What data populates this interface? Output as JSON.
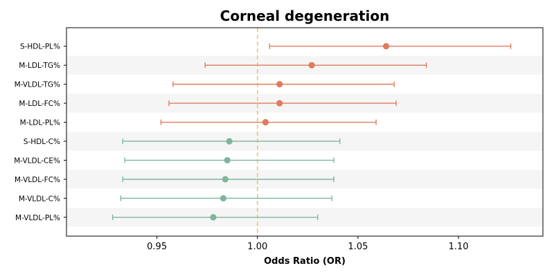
{
  "chart_data": {
    "type": "scatter",
    "title": "Corneal degeneration",
    "xlabel": "Odds Ratio (OR)",
    "ylabel": "",
    "xlim": [
      0.905,
      1.142
    ],
    "x_ticks": [
      "0.95",
      "1.00",
      "1.05",
      "1.10"
    ],
    "reference_line": 1.0,
    "grid": false,
    "band_stripes": true,
    "colors": {
      "positive": "#e07b5d",
      "negative": "#7fb59d",
      "reference": "#f2c46d",
      "stripe": "#f5f5f5"
    },
    "points": [
      {
        "label": "S-HDL-PL%",
        "or": 1.064,
        "lower": 1.006,
        "upper": 1.126,
        "group": "positive"
      },
      {
        "label": "M-LDL-TG%",
        "or": 1.027,
        "lower": 0.974,
        "upper": 1.084,
        "group": "positive"
      },
      {
        "label": "M-VLDL-TG%",
        "or": 1.011,
        "lower": 0.958,
        "upper": 1.068,
        "group": "positive"
      },
      {
        "label": "M-LDL-FC%",
        "or": 1.011,
        "lower": 0.956,
        "upper": 1.069,
        "group": "positive"
      },
      {
        "label": "M-LDL-PL%",
        "or": 1.004,
        "lower": 0.952,
        "upper": 1.059,
        "group": "positive"
      },
      {
        "label": "S-HDL-C%",
        "or": 0.986,
        "lower": 0.933,
        "upper": 1.041,
        "group": "negative"
      },
      {
        "label": "M-VLDL-CE%",
        "or": 0.985,
        "lower": 0.934,
        "upper": 1.038,
        "group": "negative"
      },
      {
        "label": "M-VLDL-FC%",
        "or": 0.984,
        "lower": 0.933,
        "upper": 1.038,
        "group": "negative"
      },
      {
        "label": "M-VLDL-C%",
        "or": 0.983,
        "lower": 0.932,
        "upper": 1.037,
        "group": "negative"
      },
      {
        "label": "M-VLDL-PL%",
        "or": 0.978,
        "lower": 0.928,
        "upper": 1.03,
        "group": "negative"
      }
    ]
  }
}
